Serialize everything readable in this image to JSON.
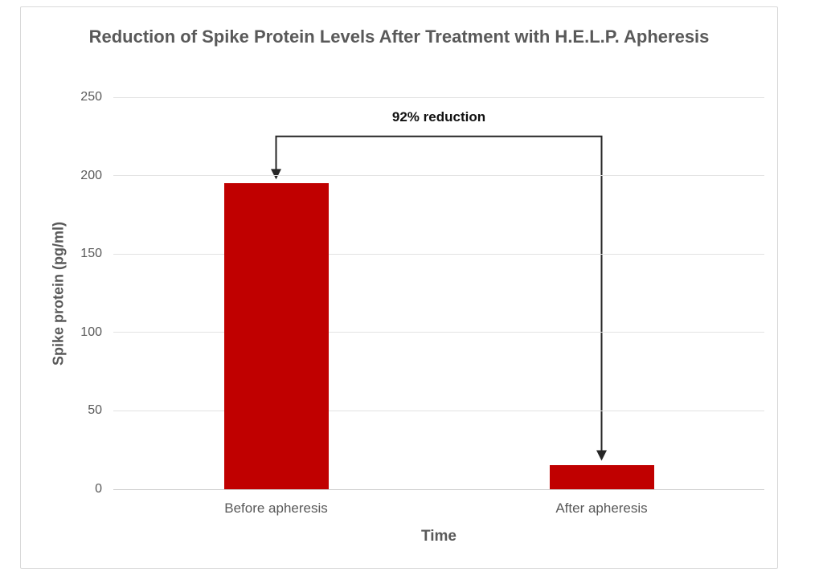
{
  "chart_data": {
    "type": "bar",
    "title": "Reduction of Spike Protein Levels After Treatment with H.E.L.P. Apheresis",
    "xlabel": "Time",
    "ylabel": "Spike protein (pg/ml)",
    "categories": [
      "Before apheresis",
      "After apheresis"
    ],
    "values": [
      195,
      15.6
    ],
    "ylim": [
      0,
      250
    ],
    "yticks": [
      0,
      50,
      100,
      150,
      200,
      250
    ],
    "grid": "horizontal",
    "legend": "none",
    "bar_color": "#c00000",
    "annotation": {
      "text": "92% reduction",
      "bracket_value": 225
    }
  },
  "colors": {
    "bar": "#c00000",
    "text": "#595959",
    "gridline": "#e3e3e3",
    "axis_line": "#cfcfcf",
    "annotation_line": "#262626",
    "frame_border": "#d9d9d9"
  }
}
